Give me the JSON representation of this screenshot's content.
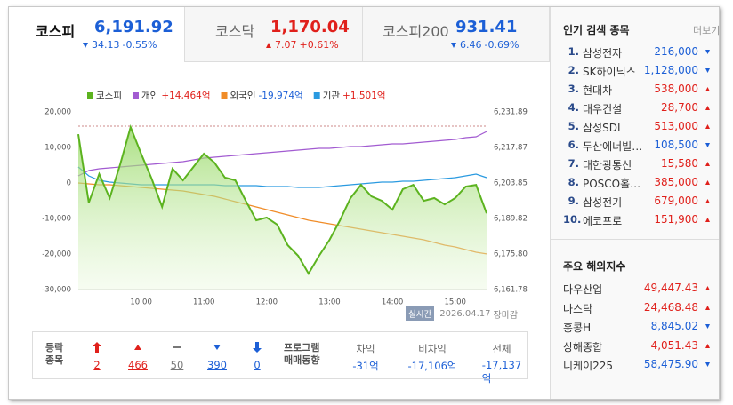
{
  "tabs": [
    {
      "name": "코스피",
      "value": "6,191.92",
      "direction": "down",
      "change": "34.13",
      "rate": "-0.55%"
    },
    {
      "name": "코스닥",
      "value": "1,170.04",
      "direction": "up",
      "change": "7.07",
      "rate": "+0.61%"
    },
    {
      "name": "코스피200",
      "value": "931.41",
      "direction": "down",
      "change": "6.46",
      "rate": "-0.69%"
    }
  ],
  "chart": {
    "type": "line",
    "categories": [
      null,
      null,
      null,
      null,
      null,
      null,
      "10:00",
      null,
      null,
      null,
      null,
      null,
      "11:00",
      null,
      null,
      null,
      null,
      null,
      "12:00",
      null,
      null,
      null,
      null,
      null,
      "13:00",
      null,
      null,
      null,
      null,
      null,
      "14:00",
      null,
      null,
      null,
      null,
      null,
      "15:00",
      null,
      null,
      null
    ],
    "series": [
      {
        "name": "코스피",
        "color": "#5cb31f",
        "axis": "y2",
        "area": true,
        "values": [
          6223.1,
          6196.1,
          6207.4,
          6197.9,
          6211.2,
          6225.9,
          6215.4,
          6205.6,
          6194.4,
          6209.5,
          6204.9,
          6210.2,
          6215.4,
          6211.9,
          6206.0,
          6204.9,
          6196.8,
          6189.1,
          6190.2,
          6187.4,
          6179.3,
          6175.1,
          6168.1,
          6175.1,
          6181.4,
          6189.1,
          6197.9,
          6203.1,
          6198.6,
          6196.8,
          6193.3,
          6201.4,
          6203.1,
          6196.8,
          6197.9,
          6195.4,
          6197.9,
          6202.4,
          6203.1,
          6191.9
        ]
      },
      {
        "name": "개인",
        "net": "+14,464억",
        "color": "#a25bd1",
        "values": [
          2000,
          3500,
          4000,
          4250,
          4500,
          4750,
          5000,
          5250,
          5500,
          5750,
          6000,
          6500,
          7000,
          7250,
          7500,
          7750,
          8000,
          8250,
          8500,
          8750,
          9000,
          9250,
          9500,
          9750,
          9750,
          10000,
          10250,
          10250,
          10500,
          10750,
          11000,
          11000,
          11250,
          11500,
          11750,
          12000,
          12250,
          12750,
          13000,
          14464
        ]
      },
      {
        "name": "외국인",
        "net": "-19,974억",
        "color": "#f08c28",
        "values": [
          0,
          -250,
          -500,
          -500,
          -750,
          -1000,
          -1250,
          -1500,
          -1750,
          -2000,
          -2250,
          -2750,
          -3250,
          -3750,
          -4500,
          -5250,
          -6000,
          -6750,
          -7500,
          -8250,
          -9000,
          -9750,
          -10500,
          -11000,
          -11500,
          -12000,
          -12500,
          -13000,
          -13500,
          -14000,
          -14500,
          -15000,
          -15500,
          -16000,
          -16750,
          -17500,
          -18000,
          -18750,
          -19500,
          -19974
        ]
      },
      {
        "name": "기관",
        "net": "+1,501억",
        "color": "#2a9ae0",
        "values": [
          4500,
          2000,
          750,
          250,
          0,
          -250,
          -500,
          -500,
          -500,
          -500,
          -500,
          -500,
          -500,
          -500,
          -750,
          -750,
          -750,
          -750,
          -1000,
          -1000,
          -1000,
          -1250,
          -1250,
          -1250,
          -1000,
          -750,
          -500,
          -250,
          0,
          250,
          250,
          500,
          500,
          750,
          1000,
          1250,
          1500,
          2000,
          2500,
          1501
        ]
      }
    ],
    "ylim": [
      -30000,
      20000
    ],
    "yticks": [
      {
        "value": 20000,
        "label": "20,000"
      },
      {
        "value": 10000,
        "label": "10,000"
      },
      0,
      {
        "value": -10000,
        "label": "-10,000"
      },
      {
        "value": -20000,
        "label": "-20,000"
      },
      {
        "value": -30000,
        "label": "-30,000"
      }
    ],
    "y2lim": [
      6161.78,
      6231.89
    ],
    "y2ticks": [
      {
        "value": 6231.89,
        "label": "6,231.89"
      },
      {
        "value": 6217.87,
        "label": "6,217.87"
      },
      {
        "value": 6203.85,
        "label": "6,203.85"
      },
      {
        "value": 6189.82,
        "label": "6,189.82"
      },
      {
        "value": 6175.8,
        "label": "6,175.80"
      },
      {
        "value": 6161.78,
        "label": "6,161.78"
      }
    ]
  },
  "status": {
    "badge": "실시간",
    "date": "2026.04.17",
    "state": "장마감"
  },
  "breadth": {
    "title_lines": [
      "등락",
      "종목"
    ],
    "items": [
      {
        "direction": "limit-up",
        "value": "2"
      },
      {
        "direction": "up",
        "value": "466"
      },
      {
        "direction": "flat",
        "value": "50"
      },
      {
        "direction": "down",
        "value": "390"
      },
      {
        "direction": "limit-down",
        "value": "0"
      }
    ]
  },
  "program": {
    "title_lines": [
      "프로그램",
      "매매동향"
    ],
    "columns": [
      {
        "header": "차익",
        "value": "-31억"
      },
      {
        "header": "비차익",
        "value": "-17,106억"
      },
      {
        "header": "전체",
        "value": "-17,137억"
      }
    ]
  },
  "popular": {
    "title": "인기 검색 종목",
    "more": "더보기",
    "items": [
      {
        "rank": "1.",
        "name": "삼성전자",
        "price": "216,000",
        "direction": "down"
      },
      {
        "rank": "2.",
        "name": "SK하이닉스",
        "price": "1,128,000",
        "direction": "down"
      },
      {
        "rank": "3.",
        "name": "현대차",
        "price": "538,000",
        "direction": "up"
      },
      {
        "rank": "4.",
        "name": "대우건설",
        "price": "28,700",
        "direction": "up"
      },
      {
        "rank": "5.",
        "name": "삼성SDI",
        "price": "513,000",
        "direction": "up"
      },
      {
        "rank": "6.",
        "name": "두산에너빌…",
        "price": "108,500",
        "direction": "down"
      },
      {
        "rank": "7.",
        "name": "대한광통신",
        "price": "15,580",
        "direction": "up"
      },
      {
        "rank": "8.",
        "name": "POSCO홀…",
        "price": "385,000",
        "direction": "up"
      },
      {
        "rank": "9.",
        "name": "삼성전기",
        "price": "679,000",
        "direction": "up"
      },
      {
        "rank": "10.",
        "name": "에코프로",
        "price": "151,900",
        "direction": "up"
      }
    ]
  },
  "world": {
    "title": "주요 해외지수",
    "items": [
      {
        "name": "다우산업",
        "value": "49,447.43",
        "direction": "up"
      },
      {
        "name": "나스닥",
        "value": "24,468.48",
        "direction": "up"
      },
      {
        "name": "홍콩H",
        "value": "8,845.02",
        "direction": "down"
      },
      {
        "name": "상해종합",
        "value": "4,051.43",
        "direction": "up"
      },
      {
        "name": "니케이225",
        "value": "58,475.90",
        "direction": "down"
      }
    ]
  }
}
